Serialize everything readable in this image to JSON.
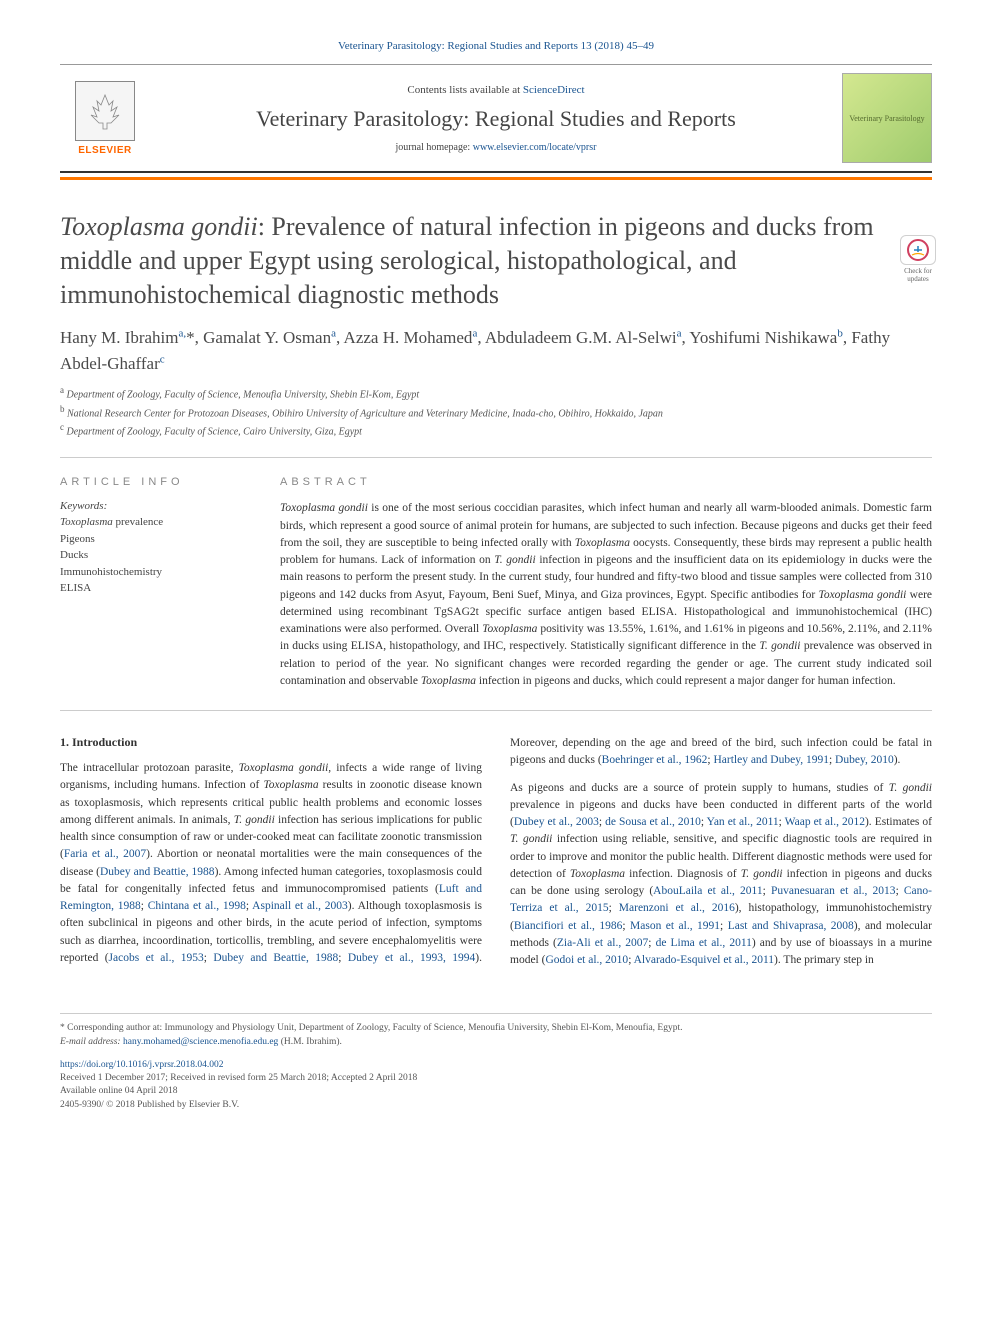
{
  "header": {
    "citation_link": "Veterinary Parasitology: Regional Studies and Reports 13 (2018) 45–49",
    "contents_prefix": "Contents lists available at ",
    "contents_link": "ScienceDirect",
    "journal_name": "Veterinary Parasitology: Regional Studies and Reports",
    "homepage_prefix": "journal homepage: ",
    "homepage_link": "www.elsevier.com/locate/vprsr",
    "elsevier_label": "ELSEVIER",
    "cover_label": "Veterinary Parasitology"
  },
  "check_updates": {
    "line1": "Check for",
    "line2": "updates"
  },
  "article": {
    "title_prefix_italic": "Toxoplasma gondii",
    "title_rest": ": Prevalence of natural infection in pigeons and ducks from middle and upper Egypt using serological, histopathological, and immunohistochemical diagnostic methods",
    "authors_html": "Hany M. Ibrahim<sup>a,</sup>*, Gamalat Y. Osman<sup>a</sup>, Azza H. Mohamed<sup>a</sup>, Abduladeem G.M. Al-Selwi<sup>a</sup>, Yoshifumi Nishikawa<sup>b</sup>, Fathy Abdel-Ghaffar<sup>c</sup>",
    "affiliations": {
      "a": "Department of Zoology, Faculty of Science, Menoufia University, Shebin El-Kom, Egypt",
      "b": "National Research Center for Protozoan Diseases, Obihiro University of Agriculture and Veterinary Medicine, Inada-cho, Obihiro, Hokkaido, Japan",
      "c": "Department of Zoology, Faculty of Science, Cairo University, Giza, Egypt"
    }
  },
  "info": {
    "heading": "ARTICLE INFO",
    "keywords_label": "Keywords:",
    "keywords": [
      "Toxoplasma prevalence",
      "Pigeons",
      "Ducks",
      "Immunohistochemistry",
      "ELISA"
    ]
  },
  "abstract": {
    "heading": "ABSTRACT",
    "text": "Toxoplasma gondii is one of the most serious coccidian parasites, which infect human and nearly all warm-blooded animals. Domestic farm birds, which represent a good source of animal protein for humans, are subjected to such infection. Because pigeons and ducks get their feed from the soil, they are susceptible to being infected orally with Toxoplasma oocysts. Consequently, these birds may represent a public health problem for humans. Lack of information on T. gondii infection in pigeons and the insufficient data on its epidemiology in ducks were the main reasons to perform the present study. In the current study, four hundred and fifty-two blood and tissue samples were collected from 310 pigeons and 142 ducks from Asyut, Fayoum, Beni Suef, Minya, and Giza provinces, Egypt. Specific antibodies for Toxoplasma gondii were determined using recombinant TgSAG2t specific surface antigen based ELISA. Histopathological and immunohistochemical (IHC) examinations were also performed. Overall Toxoplasma positivity was 13.55%, 1.61%, and 1.61% in pigeons and 10.56%, 2.11%, and 2.11% in ducks using ELISA, histopathology, and IHC, respectively. Statistically significant difference in the T. gondii prevalence was observed in relation to period of the year. No significant changes were recorded regarding the gender or age. The current study indicated soil contamination and observable Toxoplasma infection in pigeons and ducks, which could represent a major danger for human infection."
  },
  "body": {
    "heading": "1. Introduction",
    "para1": "The intracellular protozoan parasite, <em>Toxoplasma gondii</em>, infects a wide range of living organisms, including humans. Infection of <em>Toxoplasma</em> results in zoonotic disease known as toxoplasmosis, which represents critical public health problems and economic losses among different animals. In animals, <em>T. gondii</em> infection has serious implications for public health since consumption of raw or under-cooked meat can facilitate zoonotic transmission (<a>Faria et al., 2007</a>). Abortion or neonatal mortalities were the main consequences of the disease (<a>Dubey and Beattie, 1988</a>). Among infected human categories, toxoplasmosis could be fatal for congenitally infected fetus and immunocompromised patients (<a>Luft and Remington, 1988</a>; <a>Chintana et al., 1998</a>; <a>Aspinall et al., 2003</a>). Although toxoplasmosis is often subclinical in pigeons and other birds, in the acute period of infection, symptoms such as diarrhea, incoordination, torticollis, trembling, and severe encephalomyelitis were reported (<a>Jacobs et al., 1953</a>; <a>Dubey and Beattie, 1988</a>; <a>Dubey et al., 1993, 1994</a>). Moreover, depending on the age and breed of the bird, such infection could be fatal in pigeons and ducks (<a>Boehringer et al., 1962</a>; <a>Hartley and Dubey, 1991</a>; <a>Dubey, 2010</a>).",
    "para2": "As pigeons and ducks are a source of protein supply to humans, studies of <em>T. gondii</em> prevalence in pigeons and ducks have been conducted in different parts of the world (<a>Dubey et al., 2003</a>; <a>de Sousa et al., 2010</a>; <a>Yan et al., 2011</a>; <a>Waap et al., 2012</a>). Estimates of <em>T. gondii</em> infection using reliable, sensitive, and specific diagnostic tools are required in order to improve and monitor the public health. Different diagnostic methods were used for detection of <em>Toxoplasma</em> infection. Diagnosis of <em>T. gondii</em> infection in pigeons and ducks can be done using serology (<a>AbouLaila et al., 2011</a>; <a>Puvanesuaran et al., 2013</a>; <a>Cano-Terriza et al., 2015</a>; <a>Marenzoni et al., 2016</a>), histopathology, immunohistochemistry (<a>Biancifiori et al., 1986</a>; <a>Mason et al., 1991</a>; <a>Last and Shivaprasa, 2008</a>), and molecular methods (<a>Zia-Ali et al., 2007</a>; <a>de Lima et al., 2011</a>) and by use of bioassays in a murine model (<a>Godoi et al., 2010</a>; <a>Alvarado-Esquivel et al., 2011</a>). The primary step in"
  },
  "footer": {
    "corresponding": "* Corresponding author at: Immunology and Physiology Unit, Department of Zoology, Faculty of Science, Menoufia University, Shebin El-Kom, Menoufia, Egypt.",
    "email_label": "E-mail address: ",
    "email": "hany.mohamed@science.menofia.edu.eg",
    "email_suffix": " (H.M. Ibrahim).",
    "doi_link": "https://doi.org/10.1016/j.vprsr.2018.04.002",
    "received": "Received 1 December 2017; Received in revised form 25 March 2018; Accepted 2 April 2018",
    "available": "Available online 04 April 2018",
    "copyright": "2405-9390/ © 2018 Published by Elsevier B.V."
  },
  "colors": {
    "link": "#1a5490",
    "orange_bar": "#ff7700",
    "text": "#333333",
    "heading_gray": "#888888"
  }
}
